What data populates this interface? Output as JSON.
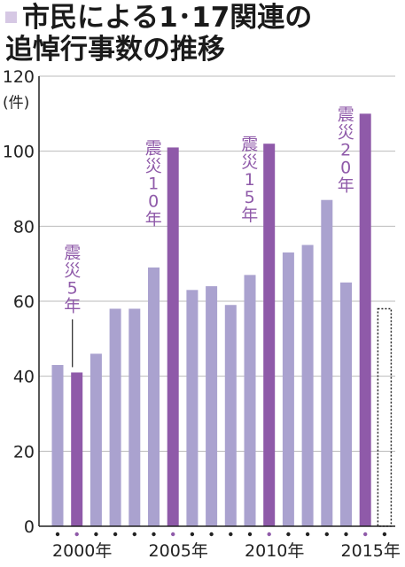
{
  "title": {
    "line1": "市民による1･17関連の",
    "line2": "追悼行事数の推移"
  },
  "colors": {
    "regular_bar": "#aaa2cf",
    "anniversary_bar": "#8f5aa9",
    "anniversary_label": "#8f5aa9",
    "marker": "#d6c8e4",
    "axis": "#222222",
    "grid": "#bbbbbb"
  },
  "chart_data": {
    "type": "bar",
    "unit_label": "(件)",
    "ylim": [
      0,
      120
    ],
    "y_ticks": [
      0,
      20,
      40,
      60,
      80,
      100,
      120
    ],
    "years": [
      1999,
      2000,
      2001,
      2002,
      2003,
      2004,
      2005,
      2006,
      2007,
      2008,
      2009,
      2010,
      2011,
      2012,
      2013,
      2014,
      2015,
      2016
    ],
    "values": [
      43,
      41,
      46,
      58,
      58,
      69,
      101,
      63,
      64,
      59,
      67,
      102,
      73,
      75,
      87,
      65,
      110,
      58
    ],
    "highlight": [
      false,
      true,
      false,
      false,
      false,
      false,
      true,
      false,
      false,
      false,
      false,
      true,
      false,
      false,
      false,
      false,
      true,
      false
    ],
    "estimated": [
      false,
      false,
      false,
      false,
      false,
      false,
      false,
      false,
      false,
      false,
      false,
      false,
      false,
      false,
      false,
      false,
      false,
      true
    ],
    "x_tick_labels": [
      "2000年",
      "2005年",
      "2010年",
      "2015年"
    ],
    "annotations": [
      "震災5年",
      "震災10年",
      "震災15年",
      "震災20年"
    ]
  }
}
